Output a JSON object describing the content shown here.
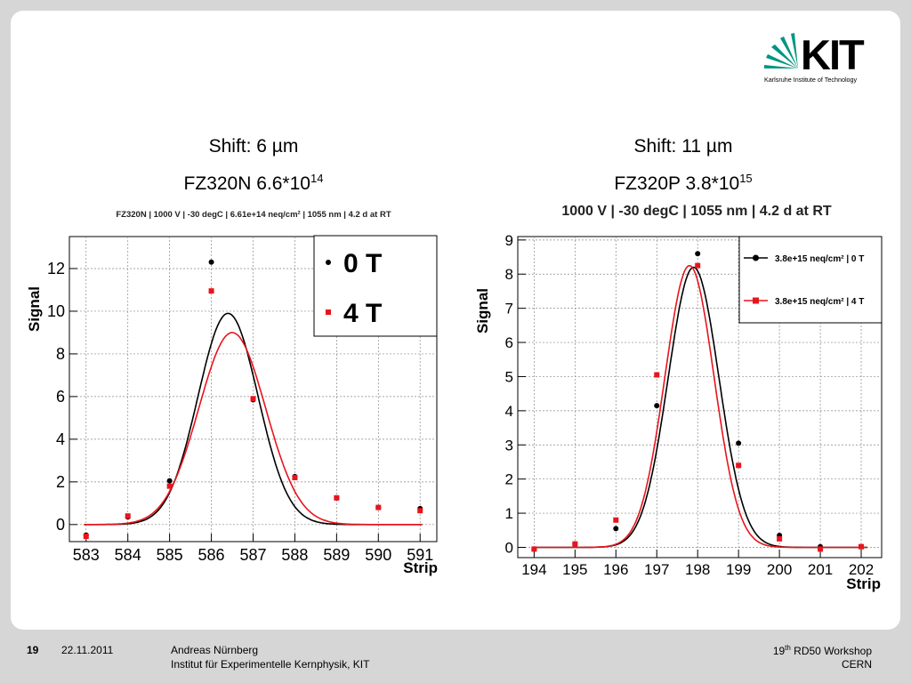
{
  "logo": {
    "wordmark": "KIT",
    "tagline": "Karlsruhe Institute of Technology"
  },
  "plots": [
    {
      "shift_label": "Shift: 6 µm",
      "sample_label": "FZ320N 6.6*10",
      "sample_exp": "14"
    },
    {
      "shift_label": "Shift: 11 µm",
      "sample_label": "FZ320P 3.8*10",
      "sample_exp": "15"
    }
  ],
  "footer": {
    "page": "19",
    "date": "22.11.2011",
    "author": "Andreas Nürnberg",
    "institute": "Institut für Experimentelle Kernphysik, KIT",
    "event_sup": "th",
    "event_pre": "19",
    "event_post": " RD50 Workshop",
    "location": "CERN"
  },
  "chart_data": [
    {
      "type": "scatter",
      "title": "FZ320N | 1000 V | -30 degC | 6.61e+14 neq/cm² | 1055 nm | 4.2 d at RT",
      "xlabel": "Strip",
      "ylabel": "Signal",
      "xlim": [
        582.6,
        591.4
      ],
      "ylim": [
        -0.8,
        13.5
      ],
      "xticks": [
        583,
        584,
        585,
        586,
        587,
        588,
        589,
        590,
        591
      ],
      "yticks": [
        0,
        2,
        4,
        6,
        8,
        10,
        12
      ],
      "grid": true,
      "legend_placement": "top-right",
      "series": [
        {
          "name": "0 T",
          "color": "#000000",
          "marker": "circle",
          "x": [
            583,
            584,
            585,
            586,
            587,
            588,
            589,
            590,
            591
          ],
          "y": [
            -0.5,
            0.35,
            2.05,
            12.3,
            5.85,
            2.25,
            1.25,
            0.8,
            0.75
          ],
          "fit": {
            "amp": 9.9,
            "mean": 586.4,
            "sigma": 0.72
          }
        },
        {
          "name": "4 T",
          "color": "#e8141e",
          "marker": "square",
          "x": [
            583,
            584,
            585,
            586,
            587,
            588,
            589,
            590,
            591
          ],
          "y": [
            -0.55,
            0.4,
            1.8,
            10.95,
            5.9,
            2.2,
            1.25,
            0.8,
            0.65
          ],
          "fit": {
            "amp": 9.0,
            "mean": 586.5,
            "sigma": 0.8
          }
        }
      ]
    },
    {
      "type": "scatter",
      "title": "1000 V | -30 degC | 1055 nm | 4.2 d at RT",
      "xlabel": "Strip",
      "ylabel": "Signal",
      "xlim": [
        193.6,
        202.5
      ],
      "ylim": [
        -0.3,
        9.1
      ],
      "xticks": [
        194,
        195,
        196,
        197,
        198,
        199,
        200,
        201,
        202
      ],
      "yticks": [
        0,
        1,
        2,
        3,
        4,
        5,
        6,
        7,
        8,
        9
      ],
      "grid": true,
      "legend_placement": "top-right",
      "series": [
        {
          "name": "3.8e+15 neq/cm² | 0 T",
          "color": "#000000",
          "marker": "circle",
          "x": [
            194,
            195,
            196,
            197,
            198,
            199,
            200,
            201,
            202
          ],
          "y": [
            -0.05,
            0.1,
            0.55,
            4.15,
            8.6,
            3.05,
            0.35,
            0.02,
            0.02
          ],
          "fit": {
            "amp": 8.2,
            "mean": 197.9,
            "sigma": 0.62
          }
        },
        {
          "name": "3.8e+15 neq/cm² | 4 T",
          "color": "#e8141e",
          "marker": "square",
          "x": [
            194,
            195,
            196,
            197,
            198,
            199,
            200,
            201,
            202
          ],
          "y": [
            -0.05,
            0.1,
            0.8,
            5.05,
            8.25,
            2.4,
            0.25,
            -0.05,
            0.02
          ],
          "fit": {
            "amp": 8.25,
            "mean": 197.8,
            "sigma": 0.6
          }
        }
      ]
    }
  ]
}
